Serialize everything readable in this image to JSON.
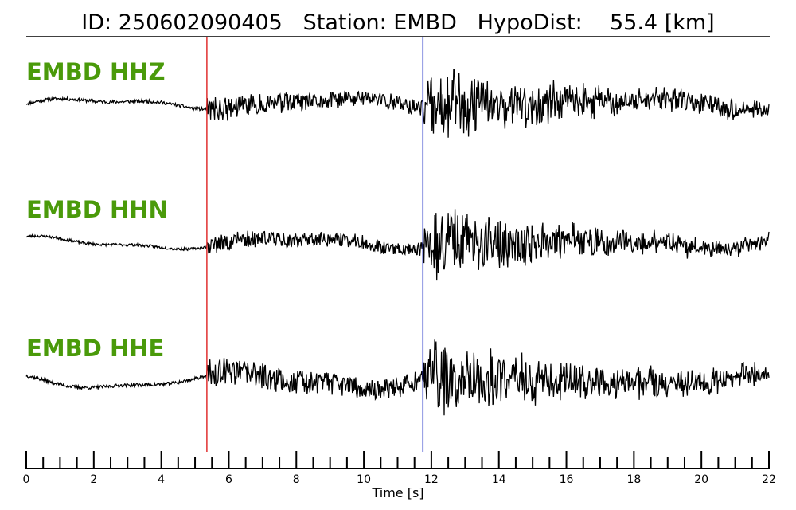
{
  "header": {
    "id_label": "ID:",
    "id_value": "250602090405",
    "station_label": "Station:",
    "station_value": "EMBD",
    "dist_label": "HypoDist:",
    "dist_value": "55.4 [km]"
  },
  "chart_data": {
    "type": "line",
    "title": "ID: 250602090405   Station: EMBD   HypoDist:    55.4 [km]",
    "xlabel": "Time [s]",
    "xlim": [
      0,
      22
    ],
    "x_ticks": [
      0,
      2,
      4,
      6,
      8,
      10,
      12,
      14,
      16,
      18,
      20,
      22
    ],
    "minor_tick_step": 0.5,
    "p_pick_time": 5.35,
    "s_pick_time": 11.75,
    "p_pick_color": "#e03030",
    "s_pick_color": "#2030c8",
    "trace_color": "#000000",
    "label_color": "#4a9a0a",
    "series": [
      {
        "name": "EMBD HHZ",
        "noise": 0.05,
        "p_amp": 0.35,
        "s_amp": 1.15,
        "lp_amp": 0.12,
        "seed": 11
      },
      {
        "name": "EMBD HHN",
        "noise": 0.04,
        "p_amp": 0.28,
        "s_amp": 1.1,
        "lp_amp": 0.15,
        "seed": 23
      },
      {
        "name": "EMBD HHE",
        "noise": 0.05,
        "p_amp": 0.45,
        "s_amp": 1.2,
        "lp_amp": 0.2,
        "seed": 37
      }
    ]
  }
}
